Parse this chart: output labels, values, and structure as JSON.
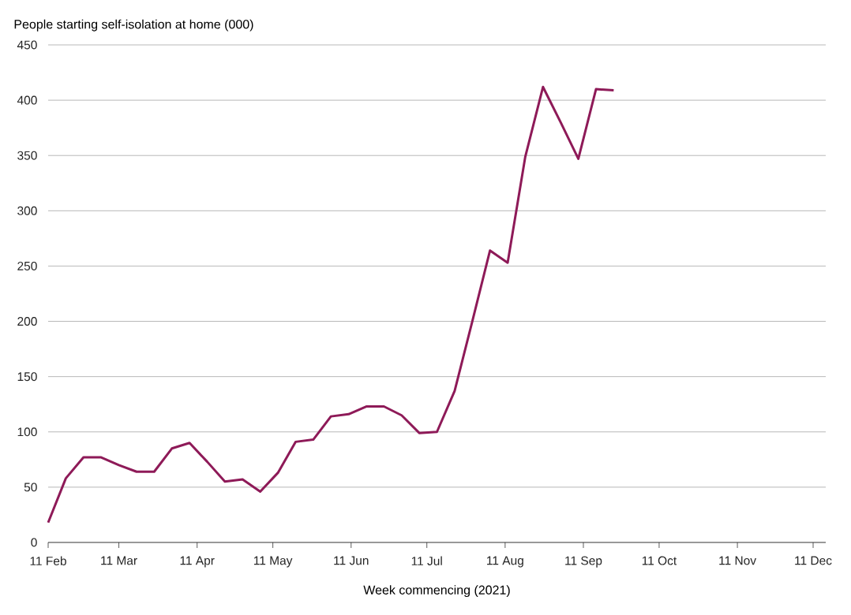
{
  "chart_data": {
    "type": "line",
    "ylabel": "People starting self-isolation at home (000)",
    "xlabel": "Week commencing (2021)",
    "x": [
      "2021-02-11",
      "2021-02-18",
      "2021-02-25",
      "2021-03-04",
      "2021-03-11",
      "2021-03-18",
      "2021-03-25",
      "2021-04-01",
      "2021-04-08",
      "2021-04-15",
      "2021-04-22",
      "2021-04-29",
      "2021-05-06",
      "2021-05-13",
      "2021-05-20",
      "2021-05-27",
      "2021-06-03",
      "2021-06-10",
      "2021-06-17",
      "2021-06-24",
      "2021-07-01",
      "2021-07-08",
      "2021-07-15",
      "2021-07-22",
      "2021-07-29",
      "2021-08-05",
      "2021-08-12",
      "2021-08-19",
      "2021-08-26",
      "2021-09-02",
      "2021-09-09",
      "2021-09-16",
      "2021-09-23"
    ],
    "values": [
      18,
      58,
      77,
      77,
      70,
      64,
      64,
      85,
      90,
      73,
      55,
      57,
      46,
      63,
      91,
      93,
      114,
      116,
      123,
      123,
      115,
      99,
      100,
      137,
      200,
      264,
      253,
      349,
      412,
      380,
      347,
      410,
      409
    ],
    "color": "#8e1a58",
    "xlim": [
      "2021-02-11",
      "2021-12-16"
    ],
    "ylim": [
      0,
      450
    ],
    "xticks": [
      {
        "value": "2021-02-11",
        "label": "11 Feb"
      },
      {
        "value": "2021-03-11",
        "label": "11 Mar"
      },
      {
        "value": "2021-04-11",
        "label": "11 Apr"
      },
      {
        "value": "2021-05-11",
        "label": "11 May"
      },
      {
        "value": "2021-06-11",
        "label": "11 Jun"
      },
      {
        "value": "2021-07-11",
        "label": "11 Jul"
      },
      {
        "value": "2021-08-11",
        "label": "11 Aug"
      },
      {
        "value": "2021-09-11",
        "label": "11 Sep"
      },
      {
        "value": "2021-10-11",
        "label": "11 Oct"
      },
      {
        "value": "2021-11-11",
        "label": "11 Nov"
      },
      {
        "value": "2021-12-11",
        "label": "11 Dec"
      }
    ],
    "yticks": [
      0,
      50,
      100,
      150,
      200,
      250,
      300,
      350,
      400,
      450
    ],
    "grid": "y"
  }
}
